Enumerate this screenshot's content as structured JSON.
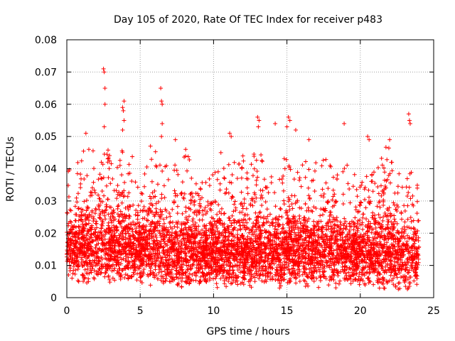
{
  "chart_data": {
    "type": "scatter",
    "title": "Day 105 of 2020, Rate Of TEC Index for receiver p483",
    "xlabel": "GPS time / hours",
    "ylabel": "ROTI / TECUs",
    "xlim": [
      0,
      25
    ],
    "ylim": [
      0,
      0.08
    ],
    "xticks": [
      "0",
      "5",
      "10",
      "15",
      "20",
      "25"
    ],
    "yticks": [
      "0",
      "0.01",
      "0.02",
      "0.03",
      "0.04",
      "0.05",
      "0.06",
      "0.07",
      "0.08"
    ],
    "grid": true,
    "marker": "+",
    "series": [
      {
        "name": "ROTI",
        "color": "#ff0000",
        "outliers": [
          [
            1.3,
            0.051
          ],
          [
            2.5,
            0.071
          ],
          [
            2.55,
            0.07
          ],
          [
            2.6,
            0.065
          ],
          [
            2.6,
            0.06
          ],
          [
            2.55,
            0.053
          ],
          [
            3.8,
            0.059
          ],
          [
            3.85,
            0.058
          ],
          [
            3.9,
            0.061
          ],
          [
            3.9,
            0.055
          ],
          [
            3.8,
            0.052
          ],
          [
            6.4,
            0.065
          ],
          [
            6.45,
            0.061
          ],
          [
            6.5,
            0.06
          ],
          [
            6.5,
            0.054
          ],
          [
            6.45,
            0.05
          ],
          [
            5.7,
            0.047
          ],
          [
            7.4,
            0.049
          ],
          [
            8.1,
            0.046
          ],
          [
            11.1,
            0.051
          ],
          [
            11.2,
            0.05
          ],
          [
            12.0,
            0.044
          ],
          [
            13.0,
            0.056
          ],
          [
            13.1,
            0.055
          ],
          [
            13.05,
            0.053
          ],
          [
            14.2,
            0.054
          ],
          [
            15.1,
            0.056
          ],
          [
            15.2,
            0.055
          ],
          [
            15.0,
            0.053
          ],
          [
            15.6,
            0.052
          ],
          [
            16.5,
            0.049
          ],
          [
            18.9,
            0.054
          ],
          [
            20.5,
            0.05
          ],
          [
            20.6,
            0.049
          ],
          [
            22.0,
            0.049
          ],
          [
            23.3,
            0.057
          ],
          [
            23.35,
            0.055
          ],
          [
            23.4,
            0.054
          ],
          [
            1.5,
            0.046
          ],
          [
            10.5,
            0.045
          ]
        ],
        "envelope": {
          "hours": [
            0,
            0.5,
            1,
            1.5,
            2,
            2.5,
            3,
            3.5,
            4,
            4.5,
            5,
            5.5,
            6,
            6.5,
            7,
            7.5,
            8,
            8.5,
            9,
            9.5,
            10,
            10.5,
            11,
            11.5,
            12,
            12.5,
            13,
            13.5,
            14,
            14.5,
            15,
            15.5,
            16,
            16.5,
            17,
            17.5,
            18,
            18.5,
            19,
            19.5,
            20,
            20.5,
            21,
            21.5,
            22,
            22.5,
            23,
            23.5,
            24
          ],
          "typical_min": [
            0.008,
            0.007,
            0.006,
            0.006,
            0.006,
            0.006,
            0.006,
            0.006,
            0.006,
            0.006,
            0.006,
            0.006,
            0.005,
            0.005,
            0.005,
            0.005,
            0.005,
            0.005,
            0.005,
            0.005,
            0.005,
            0.005,
            0.005,
            0.005,
            0.005,
            0.005,
            0.005,
            0.005,
            0.005,
            0.005,
            0.005,
            0.005,
            0.005,
            0.005,
            0.005,
            0.005,
            0.005,
            0.005,
            0.005,
            0.005,
            0.005,
            0.005,
            0.005,
            0.004,
            0.004,
            0.004,
            0.004,
            0.004,
            0.005
          ],
          "typical_max": [
            0.028,
            0.03,
            0.035,
            0.033,
            0.035,
            0.04,
            0.035,
            0.032,
            0.035,
            0.032,
            0.03,
            0.032,
            0.035,
            0.033,
            0.028,
            0.03,
            0.035,
            0.032,
            0.03,
            0.028,
            0.03,
            0.03,
            0.035,
            0.03,
            0.032,
            0.03,
            0.035,
            0.03,
            0.028,
            0.03,
            0.035,
            0.032,
            0.03,
            0.032,
            0.03,
            0.033,
            0.035,
            0.03,
            0.03,
            0.03,
            0.03,
            0.03,
            0.028,
            0.035,
            0.035,
            0.03,
            0.028,
            0.03,
            0.027
          ]
        }
      }
    ]
  }
}
